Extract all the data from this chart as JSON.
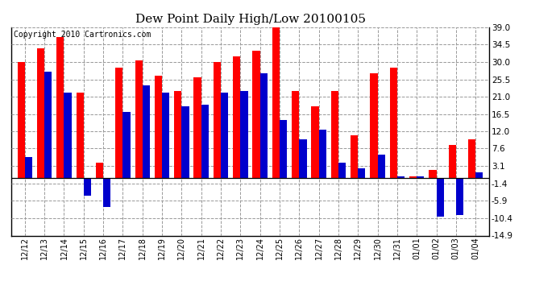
{
  "title": "Dew Point Daily High/Low 20100105",
  "copyright": "Copyright 2010 Cartronics.com",
  "dates": [
    "12/12",
    "12/13",
    "12/14",
    "12/15",
    "12/16",
    "12/17",
    "12/18",
    "12/19",
    "12/20",
    "12/21",
    "12/22",
    "12/23",
    "12/24",
    "12/25",
    "12/26",
    "12/27",
    "12/28",
    "12/29",
    "12/30",
    "12/31",
    "01/01",
    "01/02",
    "01/03",
    "01/04"
  ],
  "highs": [
    30.0,
    33.5,
    36.5,
    22.0,
    4.0,
    28.5,
    30.5,
    26.5,
    22.5,
    26.0,
    30.0,
    31.5,
    33.0,
    39.0,
    22.5,
    18.5,
    22.5,
    11.0,
    27.0,
    28.5,
    0.5,
    2.0,
    8.5,
    10.0
  ],
  "lows": [
    5.5,
    27.5,
    22.0,
    -4.5,
    -7.5,
    17.0,
    24.0,
    22.0,
    18.5,
    19.0,
    22.0,
    22.5,
    27.0,
    15.0,
    10.0,
    12.5,
    4.0,
    2.5,
    6.0,
    0.5,
    0.5,
    -10.0,
    -9.5,
    1.5
  ],
  "high_color": "#ff0000",
  "low_color": "#0000cc",
  "background_color": "#ffffff",
  "grid_color": "#999999",
  "yticks": [
    39.0,
    34.5,
    30.0,
    25.5,
    21.0,
    16.5,
    12.0,
    7.6,
    3.1,
    -1.4,
    -5.9,
    -10.4,
    -14.9
  ],
  "ylim_min": -14.9,
  "ylim_max": 39.0,
  "title_fontsize": 11,
  "copyright_fontsize": 7,
  "bar_width": 0.38,
  "figwidth": 6.9,
  "figheight": 3.75,
  "dpi": 100
}
